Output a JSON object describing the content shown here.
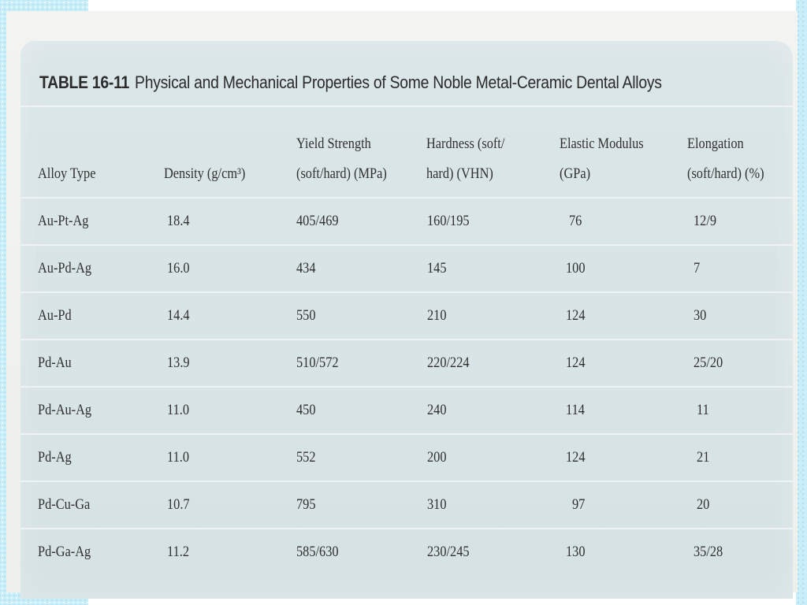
{
  "table": {
    "number": "TABLE 16-11",
    "title": "Physical and Mechanical Properties of Some Noble Metal-Ceramic Dental Alloys",
    "headers": {
      "alloy_type": "Alloy Type",
      "density": "Density (g/cm³)",
      "yield_strength_line1": "Yield Strength",
      "yield_strength_line2": "(soft/hard) (MPa)",
      "hardness_line1": "Hardness (soft/",
      "hardness_line2": "hard) (VHN)",
      "elastic_modulus_line1": "Elastic Modulus",
      "elastic_modulus_line2": "(GPa)",
      "elongation_line1": "Elongation",
      "elongation_line2": "(soft/hard) (%)"
    },
    "rows": [
      {
        "alloy": "Au-Pt-Ag",
        "density": "18.4",
        "yield": "405/469",
        "hardness": "160/195",
        "modulus": "76",
        "elongation": "12/9"
      },
      {
        "alloy": "Au-Pd-Ag",
        "density": "16.0",
        "yield": "434",
        "hardness": "145",
        "modulus": "100",
        "elongation": "7"
      },
      {
        "alloy": "Au-Pd",
        "density": "14.4",
        "yield": "550",
        "hardness": "210",
        "modulus": "124",
        "elongation": "30"
      },
      {
        "alloy": "Pd-Au",
        "density": "13.9",
        "yield": "510/572",
        "hardness": "220/224",
        "modulus": "124",
        "elongation": "25/20"
      },
      {
        "alloy": "Pd-Au-Ag",
        "density": "11.0",
        "yield": "450",
        "hardness": "240",
        "modulus": "114",
        "elongation": "11"
      },
      {
        "alloy": "Pd-Ag",
        "density": "11.0",
        "yield": "552",
        "hardness": "200",
        "modulus": "124",
        "elongation": "21"
      },
      {
        "alloy": "Pd-Cu-Ga",
        "density": "10.7",
        "yield": "795",
        "hardness": "310",
        "modulus": "97",
        "elongation": "20"
      },
      {
        "alloy": "Pd-Ga-Ag",
        "density": "11.2",
        "yield": "585/630",
        "hardness": "230/245",
        "modulus": "130",
        "elongation": "35/28"
      }
    ]
  }
}
